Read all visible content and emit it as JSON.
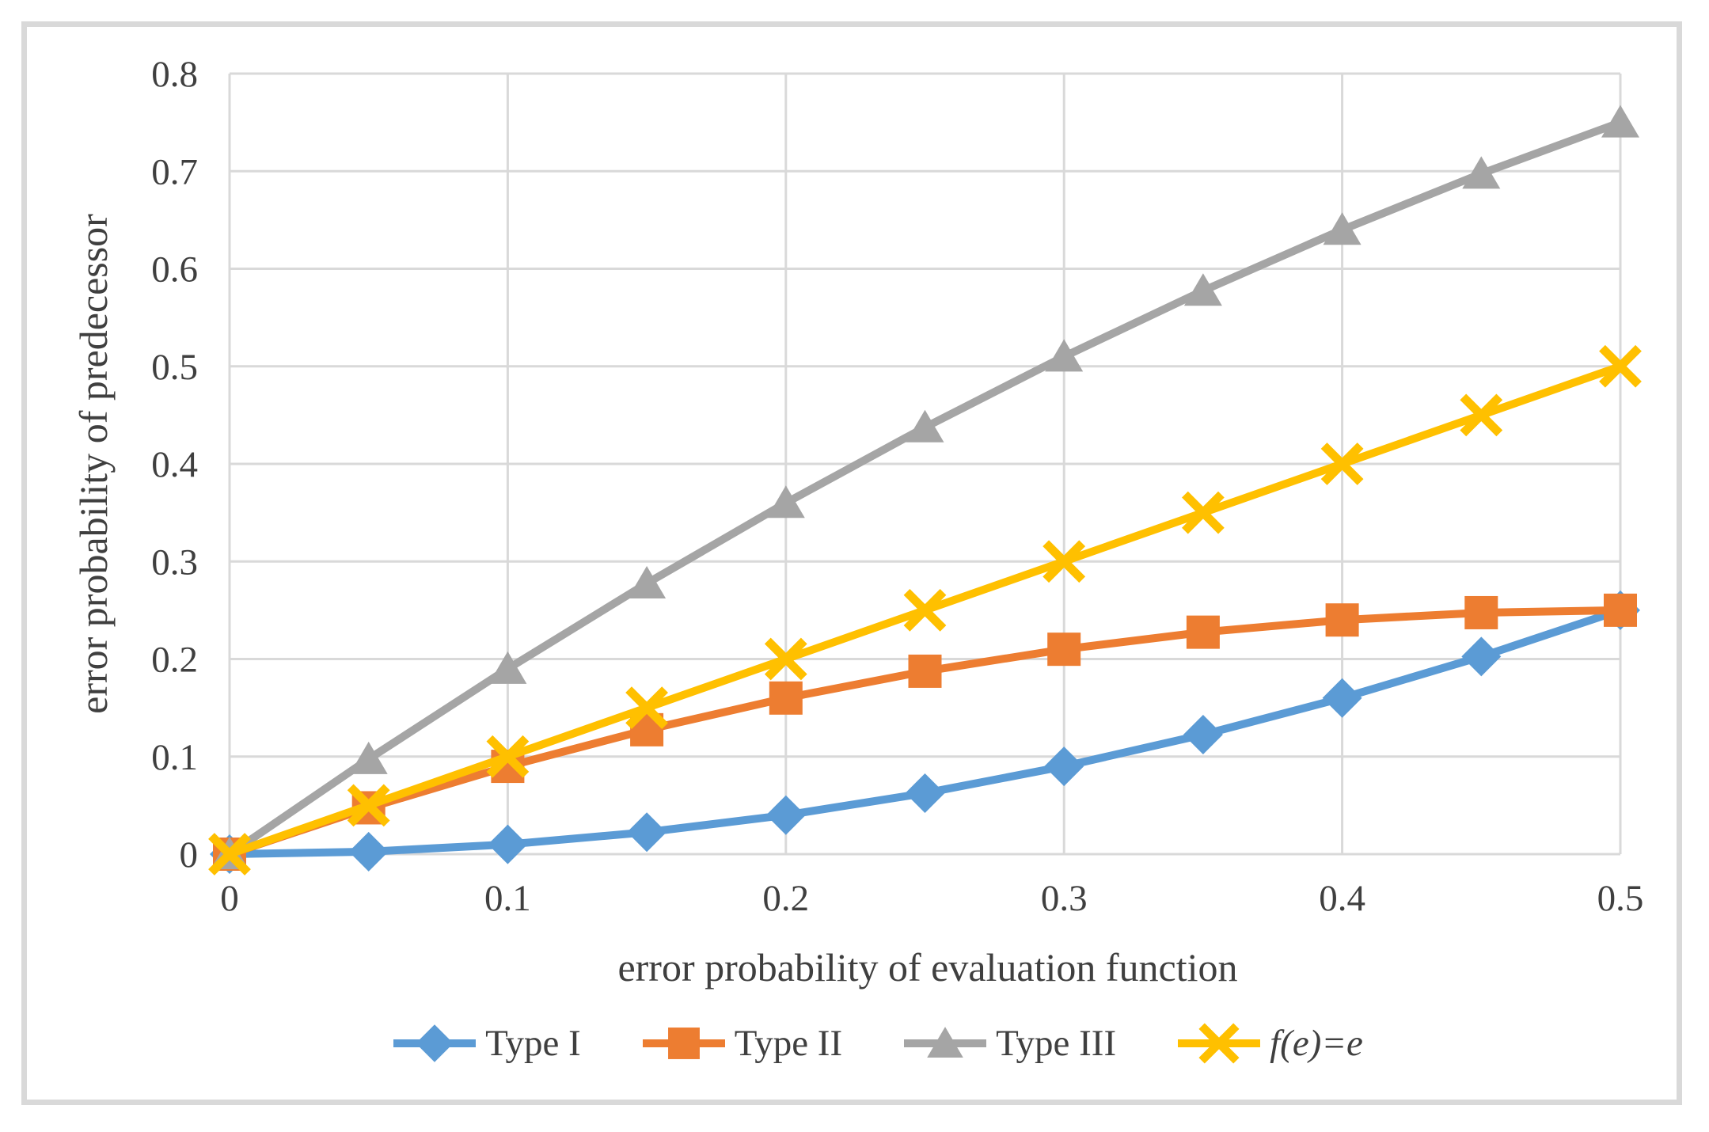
{
  "figure": {
    "frame_color": "#D9D9D9",
    "background": "#FFFFFF"
  },
  "chart_data": {
    "type": "line",
    "title": "",
    "xlabel": "error probability of evaluation function",
    "ylabel": "error probability of predecessor",
    "xlim": [
      0,
      0.5
    ],
    "ylim": [
      0,
      0.8
    ],
    "x_ticks": [
      "0",
      "0.1",
      "0.2",
      "0.3",
      "0.4",
      "0.5"
    ],
    "y_ticks": [
      "0",
      "0.1",
      "0.2",
      "0.3",
      "0.4",
      "0.5",
      "0.6",
      "0.7",
      "0.8"
    ],
    "grid": true,
    "grid_color": "#D9D9D9",
    "text_color": "#3F3F3F",
    "legend_position": "bottom",
    "x": [
      0,
      0.05,
      0.1,
      0.15,
      0.2,
      0.25,
      0.3,
      0.35,
      0.4,
      0.45,
      0.5
    ],
    "series": [
      {
        "name": "Type I",
        "color": "#5B9BD5",
        "marker": "diamond",
        "italic": false,
        "values": [
          0,
          0.0025,
          0.01,
          0.0225,
          0.04,
          0.0625,
          0.09,
          0.1225,
          0.16,
          0.2025,
          0.25
        ]
      },
      {
        "name": "Type II",
        "color": "#ED7D31",
        "marker": "square",
        "italic": false,
        "values": [
          0,
          0.0475,
          0.09,
          0.1275,
          0.16,
          0.1875,
          0.21,
          0.2275,
          0.24,
          0.2475,
          0.25
        ]
      },
      {
        "name": "Type III",
        "color": "#A5A5A5",
        "marker": "triangle",
        "italic": false,
        "values": [
          0,
          0.0975,
          0.19,
          0.2775,
          0.36,
          0.4375,
          0.51,
          0.5775,
          0.64,
          0.6975,
          0.75
        ]
      },
      {
        "name": "f(e)=e",
        "color": "#FFC000",
        "marker": "x",
        "italic": true,
        "values": [
          0,
          0.05,
          0.1,
          0.15,
          0.2,
          0.25,
          0.3,
          0.35,
          0.4,
          0.45,
          0.5
        ]
      }
    ]
  }
}
